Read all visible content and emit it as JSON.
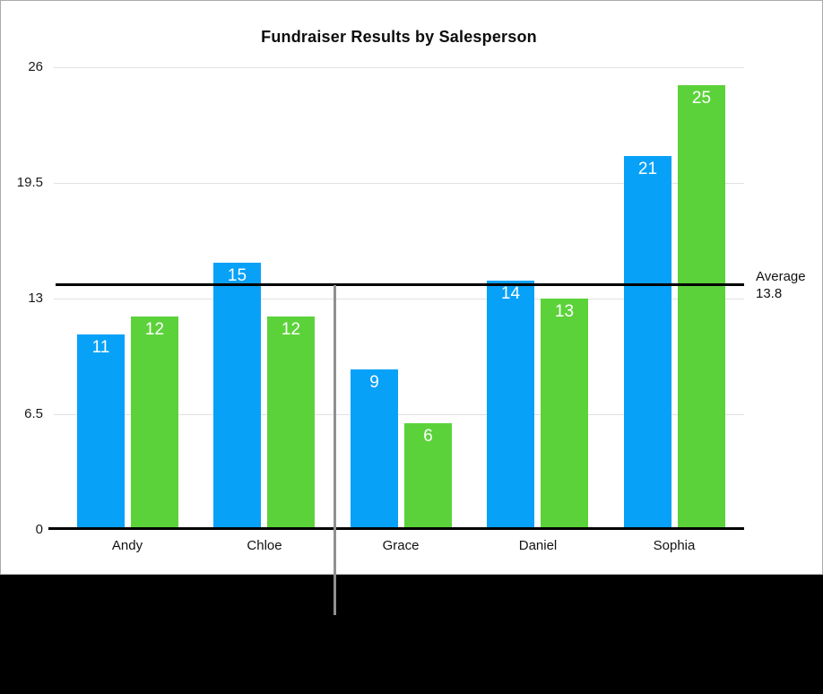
{
  "title": "Fundraiser Results by Salesperson",
  "chart_data": {
    "type": "bar",
    "title": "Fundraiser Results by Salesperson",
    "categories": [
      "Andy",
      "Chloe",
      "Grace",
      "Daniel",
      "Sophia"
    ],
    "series": [
      {
        "name": "blue-series",
        "color": "#07a1f8",
        "values": [
          11,
          15,
          9,
          14,
          21
        ]
      },
      {
        "name": "green-series",
        "color": "#5cd23a",
        "values": [
          12,
          12,
          6,
          13,
          25
        ]
      }
    ],
    "value_labels": [
      "11",
      "12",
      "15",
      "12",
      "9",
      "6",
      "14",
      "13",
      "21",
      "25"
    ],
    "y_ticks": [
      26,
      19.5,
      13,
      6.5,
      0
    ],
    "y_tick_labels": [
      "26",
      "19.5",
      "13",
      "6.5",
      "0"
    ],
    "ylim": [
      0,
      26
    ],
    "grid": true,
    "legend": "none",
    "reference_line": {
      "value": 13.8,
      "label": "Average",
      "value_text": "13.8",
      "color": "#000000"
    }
  },
  "colors": {
    "bar_blue": "#07a1f8",
    "bar_green": "#5cd23a",
    "gridline": "#e1e1e1",
    "axis": "#000000",
    "panel_background": "#ffffff",
    "outer_background": "#000000",
    "divider_line": "#909090",
    "value_label_text": "#ffffff"
  }
}
